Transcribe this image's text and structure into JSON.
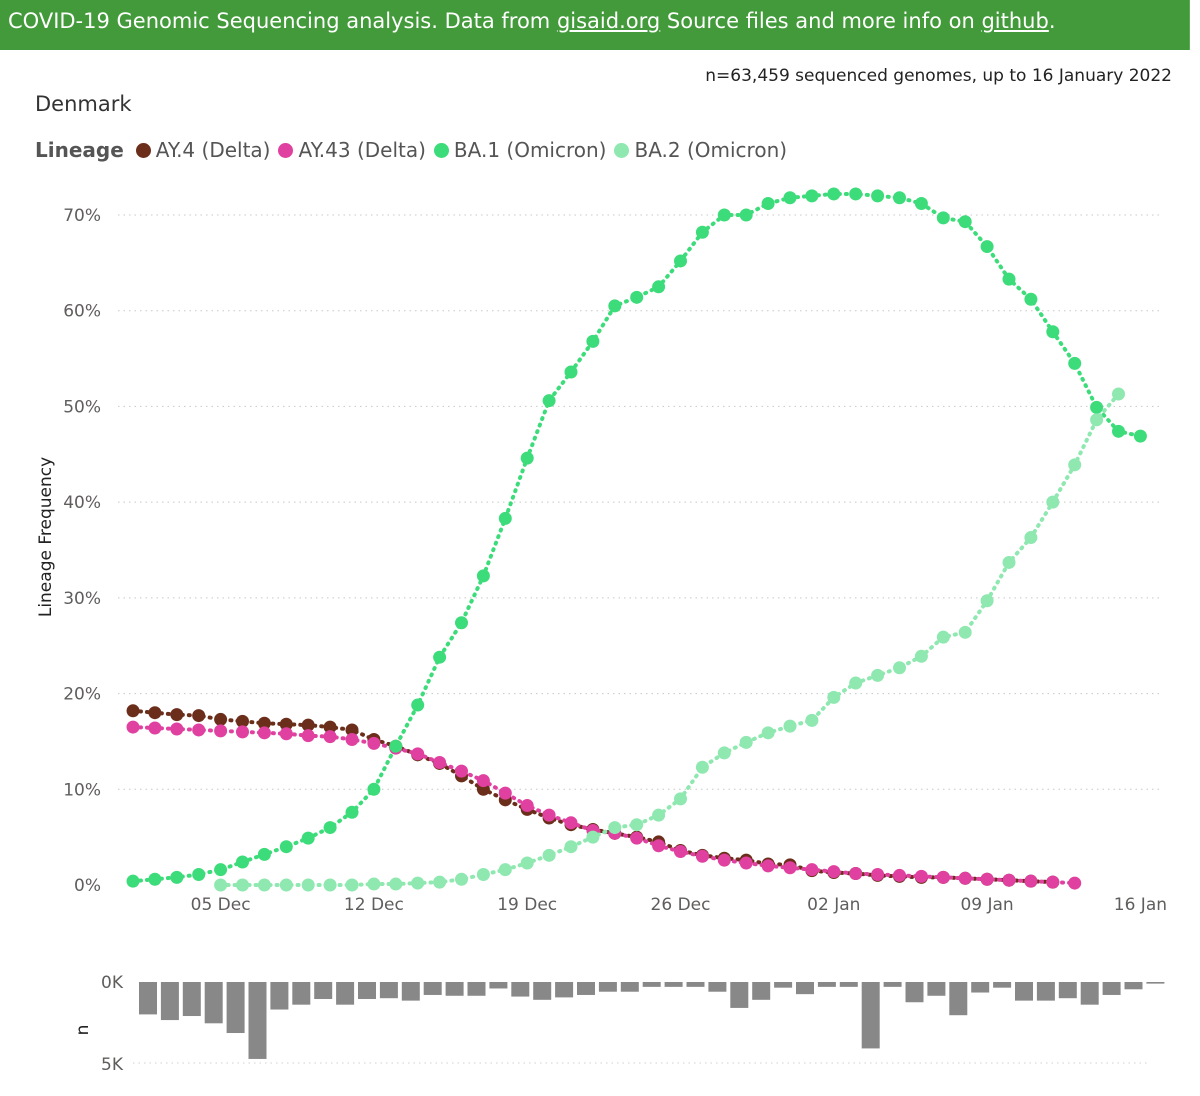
{
  "banner": {
    "prefix": "COVID-19 Genomic Sequencing analysis. Data from ",
    "link1": "gisaid.org",
    "middle": " Source files and more info on ",
    "link2": "github",
    "suffix": "."
  },
  "subtitle": "n=63,459 sequenced genomes, up to 16 January 2022",
  "country": "Denmark",
  "colors": {
    "banner": "#439a3a",
    "AY.4 (Delta)": "#6b2e1b",
    "AY.43 (Delta)": "#e040a0",
    "BA.1 (Omicron)": "#3ddc7a",
    "BA.2 (Omicron)": "#8ee8b0",
    "bars": "#888888"
  },
  "chart_data": [
    {
      "type": "line",
      "legend_title": "Lineage",
      "legend_position": "top-left",
      "ylabel": "Lineage Frequency",
      "xlabel": "",
      "x_start": "2021-12-01",
      "x_step_days": 1,
      "x_ticks": [
        "05 Dec",
        "12 Dec",
        "19 Dec",
        "26 Dec",
        "02 Jan",
        "09 Jan",
        "16 Jan"
      ],
      "x_tick_dates": [
        "2021-12-05",
        "2021-12-12",
        "2021-12-19",
        "2021-12-26",
        "2022-01-02",
        "2022-01-09",
        "2022-01-16"
      ],
      "y_ticks": [
        "0%",
        "10%",
        "20%",
        "30%",
        "40%",
        "50%",
        "60%",
        "70%"
      ],
      "ylim": [
        0,
        72
      ],
      "grid": true,
      "series": [
        {
          "name": "AY.4 (Delta)",
          "start": "2021-12-01",
          "values": [
            18.2,
            18.0,
            17.8,
            17.7,
            17.3,
            17.1,
            16.9,
            16.8,
            16.7,
            16.5,
            16.2,
            15.2,
            14.5,
            13.6,
            12.7,
            11.4,
            10.0,
            8.9,
            7.9,
            7.0,
            6.3,
            5.8,
            5.4,
            5.0,
            4.5,
            3.6,
            3.1,
            2.8,
            2.6,
            2.2,
            2.1,
            1.5,
            1.3,
            1.2,
            1.0,
            0.9,
            0.8,
            0.8,
            0.7,
            0.6,
            0.5,
            0.4,
            0.3
          ]
        },
        {
          "name": "AY.43 (Delta)",
          "start": "2021-12-01",
          "values": [
            16.5,
            16.4,
            16.3,
            16.2,
            16.1,
            16.0,
            15.9,
            15.8,
            15.6,
            15.5,
            15.2,
            14.8,
            14.3,
            13.7,
            12.8,
            11.9,
            10.9,
            9.6,
            8.3,
            7.3,
            6.5,
            5.7,
            5.4,
            4.9,
            4.1,
            3.5,
            3.0,
            2.6,
            2.3,
            2.0,
            1.8,
            1.6,
            1.4,
            1.2,
            1.1,
            1.0,
            0.9,
            0.8,
            0.7,
            0.6,
            0.5,
            0.4,
            0.3,
            0.2
          ]
        },
        {
          "name": "BA.1 (Omicron)",
          "start": "2021-12-01",
          "values": [
            0.4,
            0.6,
            0.8,
            1.1,
            1.6,
            2.4,
            3.2,
            4.0,
            4.9,
            6.0,
            7.6,
            10.0,
            14.5,
            18.8,
            23.8,
            27.4,
            32.3,
            38.3,
            44.6,
            50.6,
            53.6,
            56.8,
            60.5,
            61.4,
            62.5,
            65.2,
            68.2,
            70.0,
            70.0,
            71.2,
            71.8,
            72.0,
            72.2,
            72.2,
            72.0,
            71.8,
            71.2,
            69.7,
            69.3,
            66.7,
            63.3,
            61.2,
            57.8,
            54.5,
            49.9,
            47.4,
            46.9
          ]
        },
        {
          "name": "BA.2 (Omicron)",
          "start": "2021-12-05",
          "values": [
            0.0,
            0.0,
            0.0,
            0.0,
            0.0,
            0.0,
            0.0,
            0.1,
            0.1,
            0.2,
            0.3,
            0.6,
            1.1,
            1.6,
            2.3,
            3.1,
            4.0,
            5.0,
            6.0,
            6.3,
            7.3,
            9.0,
            12.3,
            13.8,
            14.9,
            15.9,
            16.6,
            17.2,
            19.6,
            21.1,
            21.9,
            22.7,
            23.9,
            25.9,
            26.4,
            29.7,
            33.7,
            36.3,
            40.0,
            43.9,
            48.6,
            51.3
          ]
        }
      ]
    },
    {
      "type": "bar",
      "ylabel": "n",
      "y_ticks": [
        "0K",
        "5K"
      ],
      "ylim": [
        0,
        5000
      ],
      "start": "2021-12-01",
      "values": [
        2000,
        2350,
        2100,
        2550,
        3150,
        4750,
        1700,
        1400,
        1050,
        1400,
        1050,
        1000,
        1150,
        800,
        850,
        850,
        400,
        900,
        1100,
        950,
        800,
        600,
        600,
        300,
        300,
        300,
        600,
        1600,
        1100,
        350,
        750,
        300,
        300,
        4100,
        300,
        1250,
        850,
        2050,
        650,
        350,
        1150,
        1150,
        1000,
        1400,
        800,
        450,
        100
      ]
    }
  ]
}
